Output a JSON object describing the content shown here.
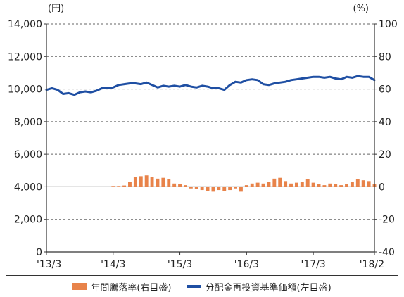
{
  "chart_data": {
    "type": "bar+line",
    "left_axis": {
      "unit": "(円)",
      "ylim": [
        0,
        14000
      ],
      "ticks": [
        "0",
        "2,000",
        "4,000",
        "6,000",
        "8,000",
        "10,000",
        "12,000",
        "14,000"
      ],
      "tick_values": [
        0,
        2000,
        4000,
        6000,
        8000,
        10000,
        12000,
        14000
      ]
    },
    "right_axis": {
      "unit": "(%)",
      "ylim": [
        -40,
        100
      ],
      "ticks": [
        "-40",
        "-20",
        "0",
        "20",
        "40",
        "60",
        "80",
        "100"
      ],
      "tick_values": [
        -40,
        -20,
        0,
        20,
        40,
        60,
        80,
        100
      ]
    },
    "x_ticks": [
      "'13/3",
      "'14/3",
      "'15/3",
      "'16/3",
      "'17/3",
      "'18/2"
    ],
    "x_tick_months": [
      0,
      12,
      24,
      36,
      48,
      59
    ],
    "grid": true,
    "legend_position": "bottom",
    "series": [
      {
        "name": "年間騰落率(右目盛)",
        "type": "bar",
        "axis": "right",
        "color": "#e8834a",
        "x_months": [
          12,
          13,
          14,
          15,
          16,
          17,
          18,
          19,
          20,
          21,
          22,
          23,
          24,
          25,
          26,
          27,
          28,
          29,
          30,
          31,
          32,
          33,
          34,
          35,
          36,
          37,
          38,
          39,
          40,
          41,
          42,
          43,
          44,
          45,
          46,
          47,
          48,
          49,
          50,
          51,
          52,
          53,
          54,
          55,
          56,
          57,
          58,
          59
        ],
        "values": [
          0.5,
          0.5,
          0.8,
          3,
          6,
          6.5,
          7,
          6,
          5,
          5.5,
          4.5,
          2,
          1.5,
          1,
          -1,
          -1.5,
          -2,
          -2.5,
          -3,
          -2,
          -2.5,
          -2,
          -1,
          -3,
          1,
          2,
          2.5,
          2,
          3,
          5,
          5.5,
          3.5,
          2,
          2.5,
          3,
          4.5,
          2.5,
          1.5,
          1,
          2,
          1.5,
          1,
          1.5,
          3,
          4.5,
          4,
          3.5,
          1.5
        ]
      },
      {
        "name": "分配金再投資基準価額(左目盛)",
        "type": "line",
        "axis": "left",
        "color": "#1f4fa3",
        "x_months": [
          0,
          1,
          2,
          3,
          4,
          5,
          6,
          7,
          8,
          9,
          10,
          11,
          12,
          13,
          14,
          15,
          16,
          17,
          18,
          19,
          20,
          21,
          22,
          23,
          24,
          25,
          26,
          27,
          28,
          29,
          30,
          31,
          32,
          33,
          34,
          35,
          36,
          37,
          38,
          39,
          40,
          41,
          42,
          43,
          44,
          45,
          46,
          47,
          48,
          49,
          50,
          51,
          52,
          53,
          54,
          55,
          56,
          57,
          58,
          59
        ],
        "values": [
          9950,
          10050,
          9950,
          9700,
          9750,
          9650,
          9800,
          9850,
          9800,
          9900,
          10050,
          10050,
          10100,
          10250,
          10300,
          10350,
          10350,
          10300,
          10400,
          10250,
          10100,
          10200,
          10150,
          10200,
          10150,
          10250,
          10150,
          10100,
          10200,
          10150,
          10050,
          10050,
          9950,
          10250,
          10450,
          10400,
          10550,
          10600,
          10550,
          10300,
          10250,
          10350,
          10400,
          10450,
          10550,
          10600,
          10650,
          10700,
          10750,
          10750,
          10700,
          10750,
          10650,
          10600,
          10750,
          10700,
          10800,
          10750,
          10750,
          10550
        ]
      }
    ]
  }
}
